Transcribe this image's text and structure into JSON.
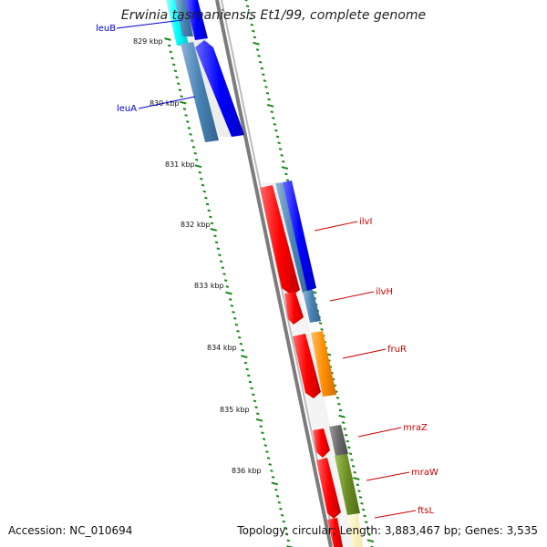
{
  "title": "Erwinia tasmaniensis Et1/99, complete genome",
  "footer": {
    "accession": "Accession: NC_010694",
    "topology": "Topology: circular; Length: 3,883,467 bp; Genes: 3,535"
  },
  "colors": {
    "backbone": "#808080",
    "tick": "#1a8a1a",
    "forward_gene": "#0000ff",
    "forward_gene_alt": "#4682b4",
    "reverse_gene": "#ff0000",
    "regulator": "#ff8c00",
    "gray_gene": "#696969",
    "olive_gene": "#6b8e23",
    "cyan_gene": "#00ffff",
    "forward_label": "#0000cd",
    "reverse_label": "#cc0000"
  },
  "scale_labels": [
    "829 kbp",
    "830 kbp",
    "831 kbp",
    "832 kbp",
    "833 kbp",
    "834 kbp",
    "835 kbp",
    "836 kbp"
  ],
  "gene_labels": [
    {
      "name": "leuB",
      "strand": "forward"
    },
    {
      "name": "leuA",
      "strand": "forward"
    },
    {
      "name": "ilvI",
      "strand": "reverse"
    },
    {
      "name": "ilvH",
      "strand": "reverse"
    },
    {
      "name": "fruR",
      "strand": "reverse"
    },
    {
      "name": "mraZ",
      "strand": "reverse"
    },
    {
      "name": "mraW",
      "strand": "reverse"
    },
    {
      "name": "ftsL",
      "strand": "reverse"
    }
  ]
}
